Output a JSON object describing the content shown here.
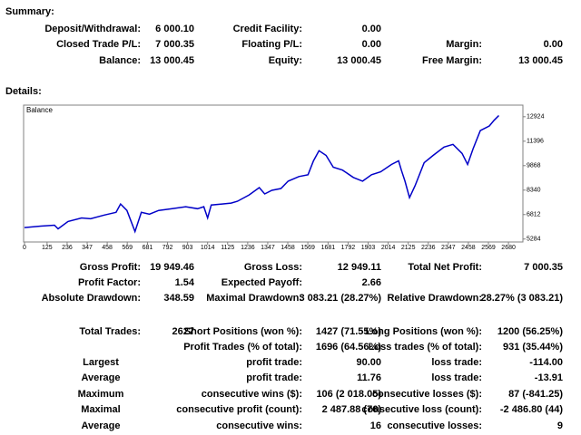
{
  "summary": {
    "title": "Summary:",
    "rows": [
      {
        "left": {
          "label": "Deposit/Withdrawal:",
          "value": "6 000.10"
        },
        "middle": {
          "label": "Credit Facility:",
          "value": "0.00"
        }
      },
      {
        "left": {
          "label": "Closed Trade P/L:",
          "value": "7 000.35"
        },
        "middle": {
          "label": "Floating P/L:",
          "value": "0.00"
        },
        "right": {
          "label": "Margin:",
          "value": "0.00"
        }
      },
      {
        "left": {
          "label": "Balance:",
          "value": "13 000.45"
        },
        "middle": {
          "label": "Equity:",
          "value": "13 000.45"
        },
        "right": {
          "label": "Free Margin:",
          "value": "13 000.45"
        }
      }
    ]
  },
  "details": {
    "title": "Details:",
    "rows": [
      {
        "left": {
          "label": "Gross Profit:",
          "value": "19 949.46"
        },
        "middle": {
          "label": "Gross Loss:",
          "value": "12 949.11"
        },
        "right": {
          "label": "Total Net Profit:",
          "value": "7 000.35"
        }
      },
      {
        "left": {
          "label": "Profit Factor:",
          "value": "1.54"
        },
        "middle": {
          "label": "Expected Payoff:",
          "value": "2.66"
        }
      },
      {
        "left": {
          "label": "Absolute Drawdown:",
          "value": "348.59"
        },
        "middle": {
          "label": "Maximal Drawdown:",
          "value": "3 083.21 (28.27%)"
        },
        "right": {
          "label": "Relative Drawdown:",
          "value": "28.27% (3 083.21)"
        }
      },
      {
        "left": {
          "label": "Total Trades:",
          "value": "2627"
        },
        "middle": {
          "label": "Short Positions (won %):",
          "value": "1427 (71.55%)"
        },
        "right": {
          "label": "Long Positions (won %):",
          "value": "1200 (56.25%)"
        }
      },
      {
        "middle": {
          "label": "Profit Trades (% of total):",
          "value": "1696 (64.56%)"
        },
        "right": {
          "label": "Loss trades (% of total):",
          "value": "931 (35.44%)"
        }
      },
      {
        "left": {
          "label": "Largest"
        },
        "middle": {
          "label": "profit trade:",
          "value": "90.00"
        },
        "right": {
          "label": "loss trade:",
          "value": "-114.00"
        }
      },
      {
        "left": {
          "label": "Average"
        },
        "middle": {
          "label": "profit trade:",
          "value": "11.76"
        },
        "right": {
          "label": "loss trade:",
          "value": "-13.91"
        }
      },
      {
        "left": {
          "label": "Maximum"
        },
        "middle": {
          "label": "consecutive wins ($):",
          "value": "106 (2 018.05)"
        },
        "right": {
          "label": "consecutive losses ($):",
          "value": "87 (-841.25)"
        }
      },
      {
        "left": {
          "label": "Maximal"
        },
        "middle": {
          "label": "consecutive profit (count):",
          "value": "2 487.88 (76)"
        },
        "right": {
          "label": "consecutive loss (count):",
          "value": "-2 486.80 (44)"
        }
      },
      {
        "left": {
          "label": "Average"
        },
        "middle": {
          "label": "consecutive wins:",
          "value": "16"
        },
        "right": {
          "label": "consecutive losses:",
          "value": "9"
        }
      }
    ]
  },
  "chart_data": {
    "type": "line",
    "x": [
      0,
      90,
      166,
      186,
      241,
      316,
      366,
      442,
      507,
      532,
      567,
      612,
      647,
      692,
      743,
      818,
      893,
      958,
      993,
      1014,
      1034,
      1094,
      1144,
      1179,
      1244,
      1300,
      1330,
      1370,
      1420,
      1460,
      1520,
      1570,
      1600,
      1631,
      1670,
      1710,
      1761,
      1821,
      1872,
      1922,
      1972,
      2032,
      2072,
      2087,
      2107,
      2132,
      2163,
      2213,
      2263,
      2323,
      2373,
      2423,
      2454,
      2484,
      2524,
      2574,
      2600,
      2627
    ],
    "series": [
      {
        "name": "Balance",
        "color": "#0000c8",
        "values": [
          6000,
          6090,
          6150,
          5920,
          6380,
          6600,
          6550,
          6780,
          6950,
          7470,
          7070,
          5750,
          6950,
          6840,
          7070,
          7180,
          7300,
          7180,
          7300,
          6600,
          7410,
          7470,
          7530,
          7640,
          8040,
          8500,
          8100,
          8330,
          8440,
          8900,
          9190,
          9300,
          10170,
          10800,
          10510,
          9770,
          9590,
          9130,
          8900,
          9300,
          9480,
          9940,
          10170,
          9590,
          8900,
          7870,
          8610,
          10050,
          10510,
          11030,
          11200,
          10630,
          9940,
          10920,
          12060,
          12350,
          12700,
          13000
        ]
      }
    ],
    "xlim": [
      0,
      2760
    ],
    "xticks": [
      0,
      125,
      236,
      347,
      458,
      569,
      681,
      792,
      903,
      1014,
      1125,
      1236,
      1347,
      1458,
      1569,
      1681,
      1792,
      1903,
      2014,
      2125,
      2236,
      2347,
      2458,
      2569,
      2680
    ],
    "ylim": [
      5100,
      13650
    ],
    "yticks": [
      5284,
      6812,
      8340,
      9868,
      11396,
      12924
    ],
    "grid": false
  }
}
